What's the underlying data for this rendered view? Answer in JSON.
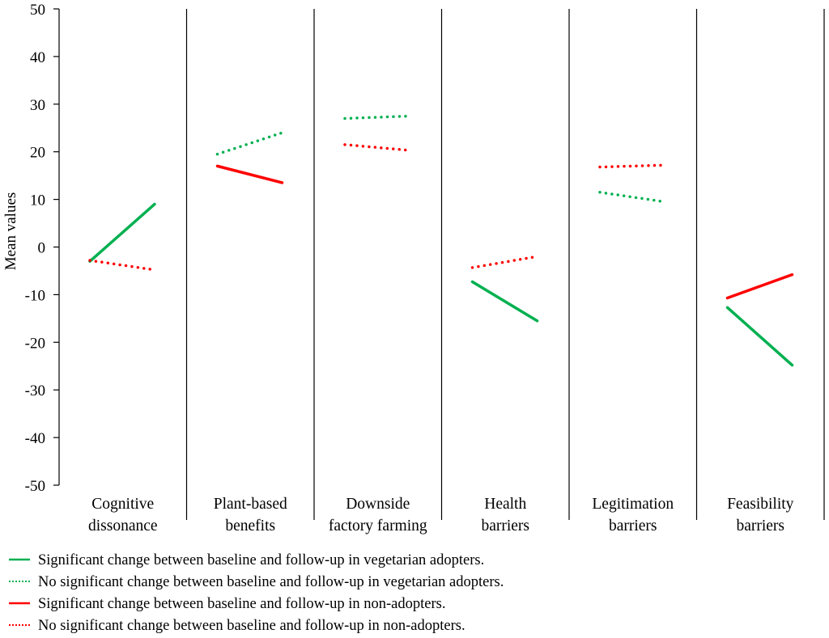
{
  "chart_data": {
    "type": "line",
    "ylabel": "Mean values",
    "ylim": [
      -50,
      50
    ],
    "yticks": [
      50,
      40,
      30,
      20,
      10,
      0,
      -10,
      -20,
      -30,
      -40,
      -50
    ],
    "categories": [
      [
        "Cognitive",
        "dissonance"
      ],
      [
        "Plant-based",
        "benefits"
      ],
      [
        "Downside",
        "factory farming"
      ],
      [
        "Health",
        "barriers"
      ],
      [
        "Legitimation",
        "barriers"
      ],
      [
        "Feasibility",
        "barriers"
      ]
    ],
    "time_points": [
      "baseline",
      "follow-up"
    ],
    "series": [
      {
        "group": "vegetarian adopters",
        "color": "#00b050",
        "values": [
          [
            -3,
            9
          ],
          [
            19.5,
            24
          ],
          [
            27,
            27.5
          ],
          [
            -7.3,
            -15.5
          ],
          [
            11.5,
            9.5
          ],
          [
            -12.7,
            -24.8
          ]
        ],
        "significant": [
          true,
          false,
          false,
          true,
          false,
          true
        ]
      },
      {
        "group": "non-adopters",
        "color": "#ff0000",
        "values": [
          [
            -2.8,
            -4.8
          ],
          [
            17,
            13.5
          ],
          [
            21.5,
            20.3
          ],
          [
            -4.3,
            -2
          ],
          [
            16.8,
            17.2
          ],
          [
            -10.7,
            -5.8
          ]
        ],
        "significant": [
          false,
          true,
          false,
          false,
          false,
          true
        ]
      }
    ],
    "legend": [
      {
        "text": "Significant change between baseline and follow-up in vegetarian adopters.",
        "color": "#00b050",
        "style": "solid"
      },
      {
        "text": "No significant change between baseline and follow-up in vegetarian adopters.",
        "color": "#00b050",
        "style": "dotted"
      },
      {
        "text": "Significant change between baseline and follow-up in non-adopters.",
        "color": "#ff0000",
        "style": "solid"
      },
      {
        "text": "No significant change between baseline and follow-up in non-adopters.",
        "color": "#ff0000",
        "style": "dotted"
      }
    ],
    "legend_position": "bottom"
  }
}
